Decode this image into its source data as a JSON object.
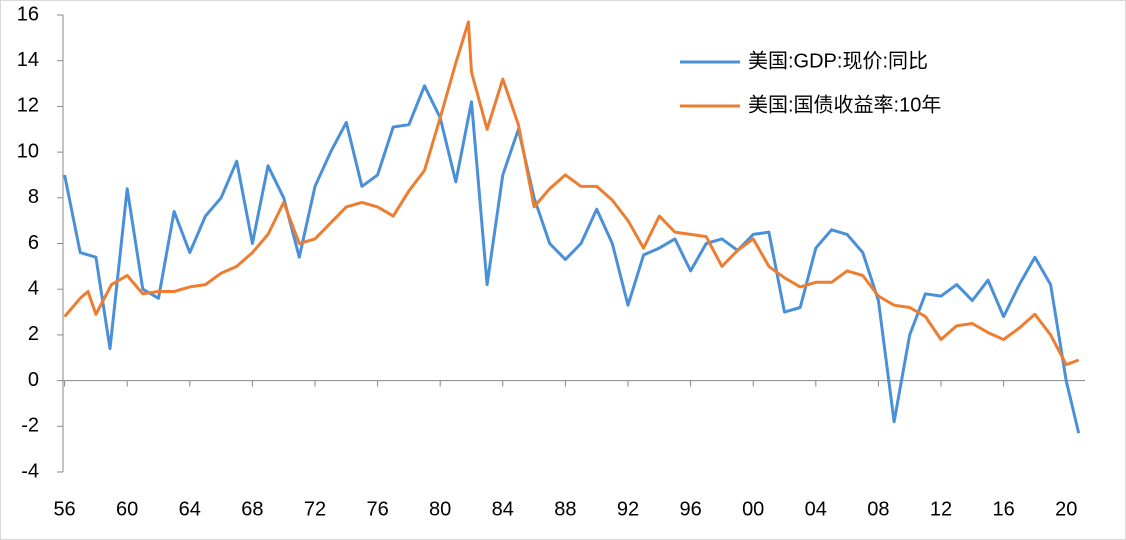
{
  "chart_data": {
    "type": "line",
    "xlim": [
      1955.9,
      2021.2
    ],
    "ylim": [
      -4,
      16
    ],
    "xticks": [
      {
        "value": 1956,
        "label": "56"
      },
      {
        "value": 1960,
        "label": "60"
      },
      {
        "value": 1964,
        "label": "64"
      },
      {
        "value": 1968,
        "label": "68"
      },
      {
        "value": 1972,
        "label": "72"
      },
      {
        "value": 1976,
        "label": "76"
      },
      {
        "value": 1980,
        "label": "80"
      },
      {
        "value": 1984,
        "label": "84"
      },
      {
        "value": 1988,
        "label": "88"
      },
      {
        "value": 1992,
        "label": "92"
      },
      {
        "value": 1996,
        "label": "96"
      },
      {
        "value": 2000,
        "label": "00"
      },
      {
        "value": 2004,
        "label": "04"
      },
      {
        "value": 2008,
        "label": "08"
      },
      {
        "value": 2012,
        "label": "12"
      },
      {
        "value": 2016,
        "label": "16"
      },
      {
        "value": 2020,
        "label": "20"
      }
    ],
    "yticks": [
      -4,
      -2,
      0,
      2,
      4,
      6,
      8,
      10,
      12,
      14,
      16
    ],
    "legend": "top-right",
    "series": [
      {
        "name": "美国:GDP:现价:同比",
        "color": "#4a90d9",
        "x": [
          1956,
          1957,
          1958,
          1958.9,
          1960,
          1961,
          1962,
          1963,
          1964,
          1965,
          1966,
          1967,
          1968,
          1969,
          1970,
          1971,
          1972,
          1973,
          1974,
          1975,
          1976,
          1977,
          1978,
          1979,
          1980,
          1981,
          1982,
          1983,
          1984,
          1985,
          1986,
          1987,
          1988,
          1989,
          1990,
          1991,
          1992,
          1993,
          1994,
          1995,
          1996,
          1997,
          1998,
          1999,
          2000,
          2001,
          2002,
          2003,
          2004,
          2005,
          2006,
          2007,
          2008,
          2009,
          2010,
          2011,
          2012,
          2013,
          2014,
          2015,
          2016,
          2017,
          2018,
          2019,
          2020,
          2020.8
        ],
        "values": [
          9,
          5.6,
          5.4,
          1.4,
          8.4,
          4,
          3.6,
          7.4,
          5.6,
          7.2,
          8,
          9.6,
          6,
          9.4,
          8,
          5.4,
          8.5,
          10,
          11.3,
          8.5,
          9,
          11.1,
          11.2,
          12.9,
          11.5,
          8.7,
          12.2,
          4.2,
          9,
          11,
          8,
          6,
          5.3,
          6,
          7.5,
          6,
          3.3,
          5.5,
          5.8,
          6.2,
          4.8,
          6,
          6.2,
          5.7,
          6.4,
          6.5,
          3,
          3.2,
          5.8,
          6.6,
          6.4,
          5.6,
          3.5,
          -1.8,
          2,
          3.8,
          3.7,
          4.2,
          3.5,
          4.4,
          2.8,
          4.2,
          5.4,
          4.2,
          0,
          -2.3
        ]
      },
      {
        "name": "美国:国债收益率:10年",
        "color": "#ed7d31",
        "x": [
          1956,
          1957,
          1957.5,
          1958,
          1959,
          1960,
          1961,
          1962,
          1963,
          1964,
          1965,
          1966,
          1967,
          1968,
          1969,
          1970,
          1971,
          1972,
          1973,
          1974,
          1975,
          1976,
          1977,
          1978,
          1979,
          1980,
          1981,
          1981.8,
          1982,
          1983,
          1984,
          1985,
          1986,
          1987,
          1988,
          1989,
          1990,
          1991,
          1992,
          1993,
          1994,
          1995,
          1996,
          1997,
          1998,
          1999,
          2000,
          2001,
          2002,
          2003,
          2004,
          2005,
          2006,
          2007,
          2008,
          2009,
          2010,
          2011,
          2012,
          2013,
          2014,
          2015,
          2016,
          2017,
          2018,
          2019,
          2020,
          2020.8
        ],
        "values": [
          2.8,
          3.6,
          3.9,
          2.9,
          4.2,
          4.6,
          3.8,
          3.9,
          3.9,
          4.1,
          4.2,
          4.7,
          5,
          5.6,
          6.4,
          7.8,
          6,
          6.2,
          6.9,
          7.6,
          7.8,
          7.6,
          7.2,
          8.3,
          9.2,
          11.5,
          13.9,
          15.7,
          13.5,
          11,
          13.2,
          11.2,
          7.6,
          8.4,
          9,
          8.5,
          8.5,
          7.9,
          7,
          5.8,
          7.2,
          6.5,
          6.4,
          6.3,
          5,
          5.7,
          6.2,
          5,
          4.5,
          4.1,
          4.3,
          4.3,
          4.8,
          4.6,
          3.7,
          3.3,
          3.2,
          2.8,
          1.8,
          2.4,
          2.5,
          2.1,
          1.8,
          2.3,
          2.9,
          2,
          0.7,
          0.9
        ]
      }
    ]
  }
}
